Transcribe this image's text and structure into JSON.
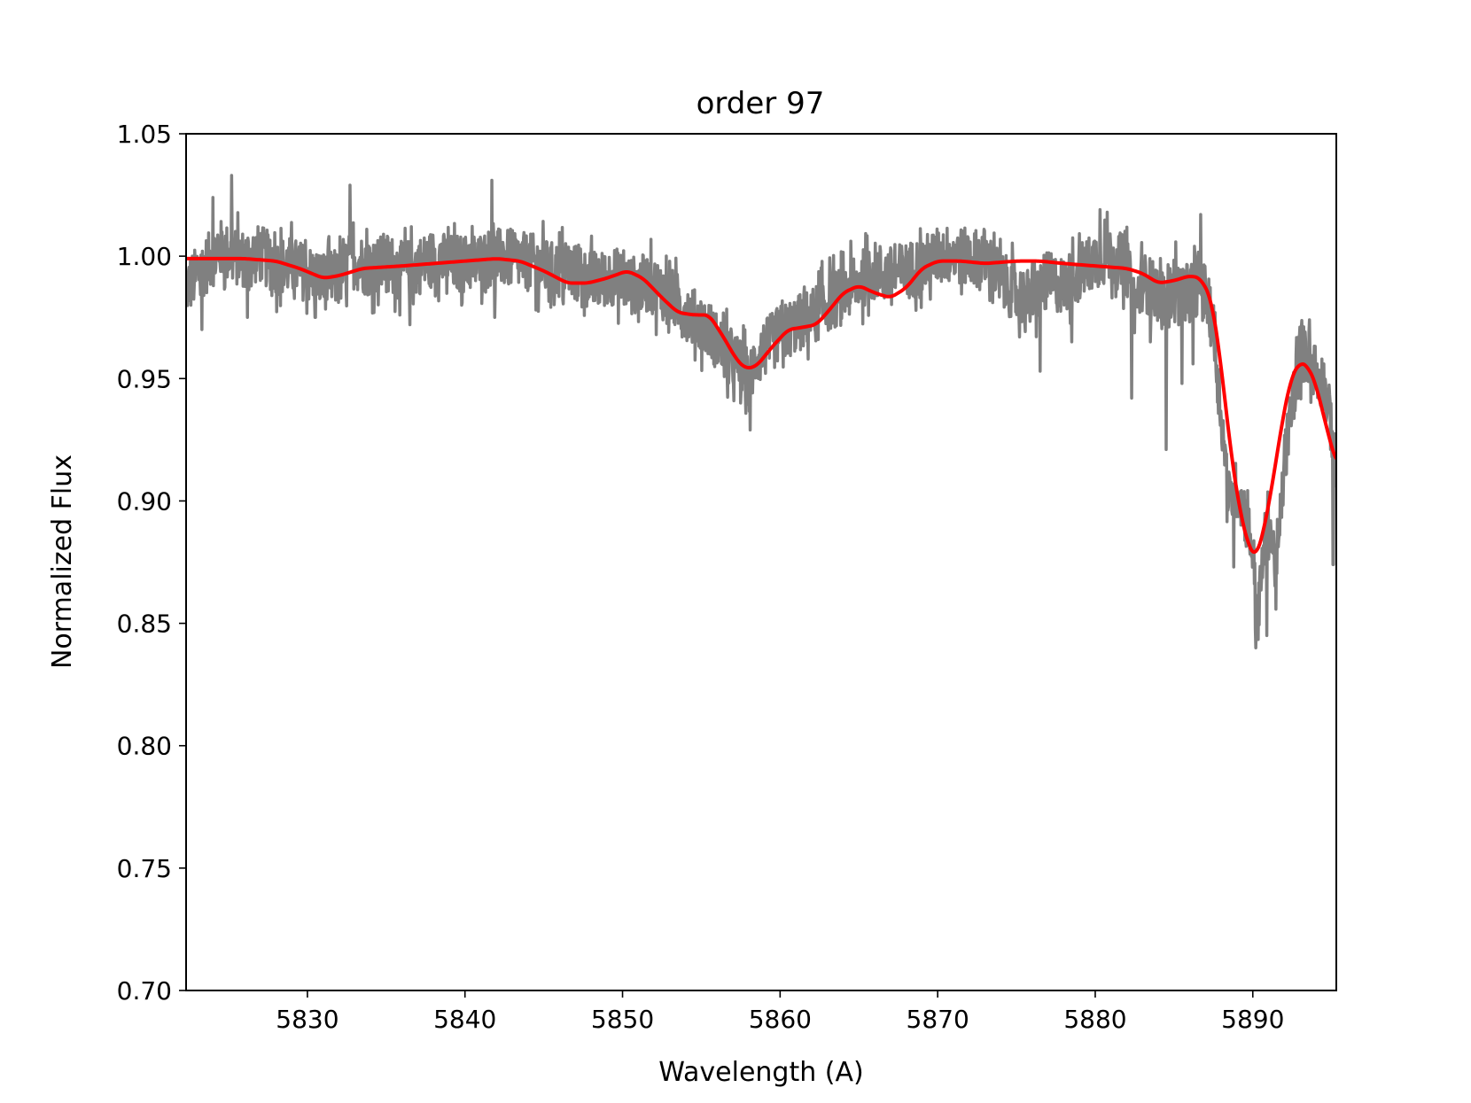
{
  "chart_data": {
    "type": "line",
    "title": "order 97",
    "xlabel": "Wavelength (A)",
    "ylabel": "Normalized Flux",
    "xlim": [
      5822.3,
      5895.3
    ],
    "ylim": [
      0.7,
      1.05
    ],
    "xticks": [
      5830,
      5840,
      5850,
      5860,
      5870,
      5880,
      5890
    ],
    "xtick_labels": [
      "5830",
      "5840",
      "5850",
      "5860",
      "5870",
      "5880",
      "5890"
    ],
    "yticks": [
      0.7,
      0.75,
      0.8,
      0.85,
      0.9,
      0.95,
      1.0,
      1.05
    ],
    "ytick_labels": [
      "0.70",
      "0.75",
      "0.80",
      "0.85",
      "0.90",
      "0.95",
      "1.00",
      "1.05"
    ],
    "grid": false,
    "series": [
      {
        "color": "#808080",
        "role": "observed",
        "x": [
          5822.3,
          5823.5,
          5824.5,
          5825.2,
          5826.0,
          5827.0,
          5828.0,
          5829.0,
          5830.0,
          5831.0,
          5832.0,
          5832.8,
          5834.0,
          5835.0,
          5836.0,
          5837.0,
          5838.0,
          5839.0,
          5840.0,
          5841.0,
          5841.7,
          5842.5,
          5843.5,
          5844.5,
          5845.5,
          5846.5,
          5847.5,
          5848.5,
          5849.5,
          5850.5,
          5851.5,
          5852.5,
          5853.5,
          5854.5,
          5855.5,
          5856.0,
          5856.8,
          5857.5,
          5858.0,
          5858.5,
          5859.0,
          5860.0,
          5861.0,
          5862.0,
          5863.0,
          5864.0,
          5865.0,
          5866.0,
          5867.0,
          5868.0,
          5869.0,
          5870.0,
          5871.0,
          5872.0,
          5873.0,
          5874.0,
          5875.0,
          5876.0,
          5877.0,
          5878.0,
          5879.0,
          5880.0,
          5881.0,
          5882.0,
          5882.5,
          5883.0,
          5884.0,
          5884.5,
          5885.0,
          5885.5,
          5886.0,
          5886.5,
          5887.0,
          5887.5,
          5888.0,
          5888.5,
          5889.0,
          5889.5,
          5890.0,
          5890.3,
          5890.7,
          5891.0,
          5891.5,
          5892.0,
          5892.5,
          5893.0,
          5893.5,
          5894.0,
          5894.5,
          5895.0,
          5895.3
        ],
        "y": [
          0.987,
          0.996,
          1.003,
          1.0,
          0.999,
          1.001,
          0.996,
          0.996,
          0.993,
          0.99,
          0.991,
          0.999,
          0.995,
          0.998,
          0.994,
          0.996,
          0.999,
          0.997,
          0.997,
          0.998,
          1.0,
          0.999,
          0.998,
          0.997,
          0.994,
          0.995,
          0.991,
          0.99,
          0.992,
          0.988,
          0.989,
          0.986,
          0.981,
          0.975,
          0.97,
          0.965,
          0.958,
          0.955,
          0.95,
          0.958,
          0.962,
          0.968,
          0.972,
          0.975,
          0.981,
          0.984,
          0.99,
          0.994,
          0.992,
          0.994,
          0.996,
          1.0,
          1.001,
          0.999,
          1.0,
          0.99,
          0.985,
          0.982,
          0.99,
          0.988,
          0.993,
          0.999,
          1.0,
          0.996,
          0.98,
          0.99,
          0.985,
          0.978,
          0.99,
          0.984,
          0.985,
          0.988,
          0.985,
          0.97,
          0.935,
          0.9,
          0.905,
          0.895,
          0.88,
          0.85,
          0.88,
          0.895,
          0.87,
          0.915,
          0.94,
          0.96,
          0.96,
          0.952,
          0.948,
          0.93,
          0.91
        ],
        "noise_amplitude": 0.012,
        "spikes": [
          {
            "x": 5825.2,
            "y": 1.033
          },
          {
            "x": 5824.0,
            "y": 1.024
          },
          {
            "x": 5823.3,
            "y": 0.97
          },
          {
            "x": 5826.2,
            "y": 0.975
          },
          {
            "x": 5832.7,
            "y": 1.029
          },
          {
            "x": 5830.5,
            "y": 0.975
          },
          {
            "x": 5836.5,
            "y": 0.972
          },
          {
            "x": 5841.7,
            "y": 1.031
          },
          {
            "x": 5841.9,
            "y": 0.975
          },
          {
            "x": 5844.5,
            "y": 0.978
          },
          {
            "x": 5857.5,
            "y": 0.94
          },
          {
            "x": 5858.1,
            "y": 0.929
          },
          {
            "x": 5875.2,
            "y": 0.967
          },
          {
            "x": 5876.5,
            "y": 0.953
          },
          {
            "x": 5878.5,
            "y": 0.965
          },
          {
            "x": 5880.3,
            "y": 1.019
          },
          {
            "x": 5882.3,
            "y": 0.942
          },
          {
            "x": 5883.5,
            "y": 0.965
          },
          {
            "x": 5884.5,
            "y": 0.921
          },
          {
            "x": 5885.5,
            "y": 0.948
          },
          {
            "x": 5886.2,
            "y": 0.956
          },
          {
            "x": 5886.7,
            "y": 1.017
          },
          {
            "x": 5888.8,
            "y": 0.873
          },
          {
            "x": 5890.2,
            "y": 0.84
          },
          {
            "x": 5890.9,
            "y": 0.845
          },
          {
            "x": 5893.0,
            "y": 0.971
          },
          {
            "x": 5893.6,
            "y": 0.974
          },
          {
            "x": 5895.1,
            "y": 0.874
          }
        ]
      },
      {
        "color": "#ff0000",
        "role": "model",
        "x": [
          5822.3,
          5824.0,
          5826.0,
          5828.0,
          5829.5,
          5831.0,
          5832.0,
          5833.5,
          5836.0,
          5838.0,
          5840.0,
          5842.0,
          5843.5,
          5845.0,
          5846.5,
          5847.8,
          5849.0,
          5850.3,
          5851.3,
          5852.5,
          5853.5,
          5854.5,
          5855.5,
          5856.5,
          5857.2,
          5857.8,
          5858.5,
          5859.5,
          5860.5,
          5861.5,
          5862.3,
          5863.0,
          5864.0,
          5865.0,
          5866.0,
          5867.0,
          5868.0,
          5869.0,
          5870.0,
          5871.5,
          5873.0,
          5875.0,
          5876.5,
          5878.0,
          5880.0,
          5882.0,
          5883.0,
          5884.0,
          5885.0,
          5886.0,
          5886.7,
          5887.4,
          5888.0,
          5888.6,
          5889.2,
          5889.8,
          5890.2,
          5890.6,
          5891.2,
          5891.8,
          5892.4,
          5893.0,
          5893.5,
          5894.0,
          5894.6,
          5895.3
        ],
        "y": [
          0.999,
          0.999,
          0.999,
          0.998,
          0.995,
          0.991,
          0.992,
          0.995,
          0.996,
          0.997,
          0.998,
          0.999,
          0.998,
          0.994,
          0.989,
          0.989,
          0.991,
          0.994,
          0.991,
          0.983,
          0.977,
          0.976,
          0.976,
          0.966,
          0.958,
          0.954,
          0.955,
          0.963,
          0.97,
          0.971,
          0.972,
          0.977,
          0.985,
          0.988,
          0.985,
          0.983,
          0.987,
          0.995,
          0.998,
          0.998,
          0.997,
          0.998,
          0.998,
          0.997,
          0.996,
          0.995,
          0.993,
          0.989,
          0.99,
          0.992,
          0.991,
          0.982,
          0.955,
          0.92,
          0.895,
          0.88,
          0.877,
          0.885,
          0.905,
          0.93,
          0.95,
          0.957,
          0.955,
          0.948,
          0.932,
          0.915
        ]
      }
    ]
  }
}
